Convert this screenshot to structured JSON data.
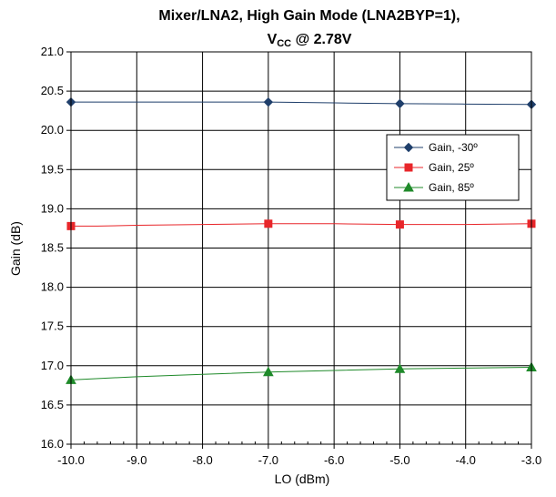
{
  "chart_data": {
    "type": "line",
    "title_line1": "Mixer/LNA2, High Gain Mode (LNA2BYP=1),",
    "title_line2_main": "V",
    "title_line2_sub": "CC",
    "title_line2_rest": " @ 2.78V",
    "xlabel": "LO (dBm)",
    "ylabel": "Gain (dB)",
    "xlim": [
      -10.0,
      -3.0
    ],
    "ylim": [
      16.0,
      21.0
    ],
    "x_ticks": [
      -10.0,
      -9.0,
      -8.0,
      -7.0,
      -6.0,
      -5.0,
      -4.0,
      -3.0
    ],
    "x_tick_labels": [
      "-10.0",
      "-9.0",
      "-8.0",
      "-7.0",
      "-6.0",
      "-5.0",
      "-4.0",
      "-3.0"
    ],
    "y_ticks": [
      16.0,
      16.5,
      17.0,
      17.5,
      18.0,
      18.5,
      19.0,
      19.5,
      20.0,
      20.5,
      21.0
    ],
    "y_tick_labels": [
      "16.0",
      "16.5",
      "17.0",
      "17.5",
      "18.0",
      "18.5",
      "19.0",
      "19.5",
      "20.0",
      "20.5",
      "21.0"
    ],
    "grid": true,
    "legend_position": "right, upper-middle",
    "series": [
      {
        "name": "Gain, -30º",
        "color": "#1F3F6B",
        "marker": "diamond",
        "points": [
          [
            -10,
            20.36
          ],
          [
            -7,
            20.36
          ],
          [
            -5,
            20.34
          ],
          [
            -3,
            20.33
          ]
        ],
        "line": [
          [
            -10,
            20.36
          ],
          [
            -9,
            20.36
          ],
          [
            -8,
            20.36
          ],
          [
            -7,
            20.36
          ],
          [
            -6,
            20.35
          ],
          [
            -5,
            20.34
          ],
          [
            -4,
            20.335
          ],
          [
            -3,
            20.33
          ]
        ]
      },
      {
        "name": "Gain, 25º",
        "color": "#E8262A",
        "marker": "square",
        "points": [
          [
            -10,
            18.78
          ],
          [
            -7,
            18.81
          ],
          [
            -5,
            18.8
          ],
          [
            -3,
            18.81
          ]
        ],
        "line": [
          [
            -10,
            18.78
          ],
          [
            -9.6,
            18.78
          ],
          [
            -9,
            18.79
          ],
          [
            -8,
            18.8
          ],
          [
            -7,
            18.81
          ],
          [
            -6,
            18.81
          ],
          [
            -5,
            18.8
          ],
          [
            -4,
            18.8
          ],
          [
            -3,
            18.81
          ]
        ]
      },
      {
        "name": "Gain, 85º",
        "color": "#1F8A2A",
        "marker": "triangle",
        "points": [
          [
            -10,
            16.82
          ],
          [
            -7,
            16.92
          ],
          [
            -5,
            16.96
          ],
          [
            -3,
            16.98
          ]
        ],
        "line": [
          [
            -10,
            16.82
          ],
          [
            -9,
            16.86
          ],
          [
            -8,
            16.89
          ],
          [
            -7,
            16.92
          ],
          [
            -6,
            16.94
          ],
          [
            -5,
            16.96
          ],
          [
            -4,
            16.97
          ],
          [
            -3,
            16.98
          ]
        ]
      }
    ]
  }
}
